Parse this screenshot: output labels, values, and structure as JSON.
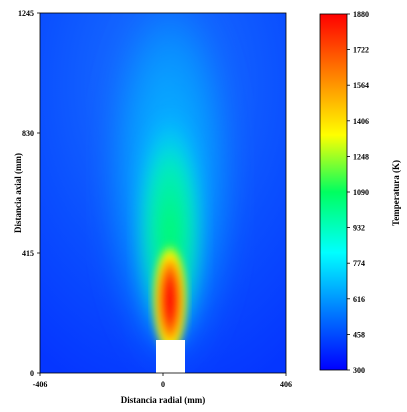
{
  "chart_data": {
    "type": "heatmap",
    "xlabel": "Distancia radial (mm)",
    "ylabel": "Distancia axial (mm)",
    "xlim": [
      -406,
      406
    ],
    "ylim": [
      0,
      1245
    ],
    "x_ticks": [
      "-406",
      "0",
      "406"
    ],
    "y_ticks": [
      "0",
      "415",
      "830",
      "1245"
    ],
    "colorbar": {
      "label": "Temperatura (K)",
      "range": [
        300,
        1880
      ],
      "ticks": [
        "300",
        "458",
        "616",
        "774",
        "932",
        "1090",
        "1248",
        "1406",
        "1564",
        "1722",
        "1880"
      ],
      "colors": [
        "#0000ff",
        "#0078ff",
        "#00ffff",
        "#00ff60",
        "#ffff00",
        "#ff8000",
        "#ff0000"
      ]
    },
    "grid": false,
    "field": {
      "description_points": [
        {
          "x": 0,
          "y": 310,
          "value": 1880
        },
        {
          "x": 0,
          "y": 500,
          "value": 1250
        },
        {
          "x": 0,
          "y": 800,
          "value": 800
        },
        {
          "x": 0,
          "y": 1245,
          "value": 650
        },
        {
          "x": -406,
          "y": 1245,
          "value": 420
        },
        {
          "x": -406,
          "y": 0,
          "value": 380
        }
      ],
      "nozzle_obstacle": {
        "x_range": [
          -50,
          50
        ],
        "y_range": [
          0,
          115
        ],
        "color": "#ffffff"
      }
    }
  }
}
